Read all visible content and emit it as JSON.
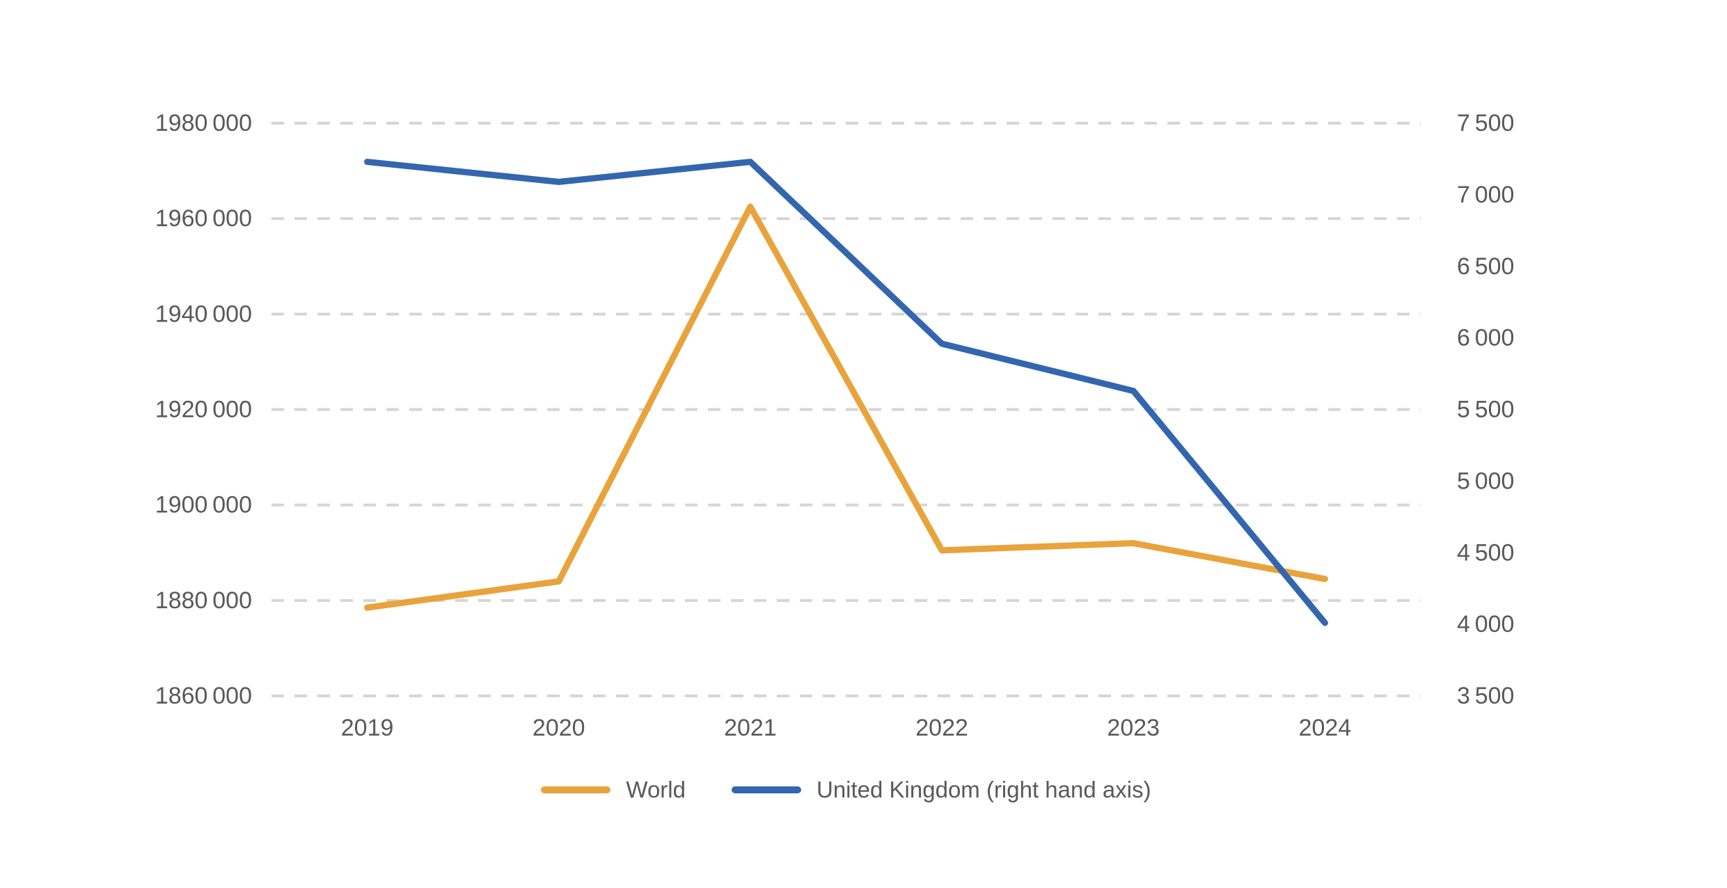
{
  "chart_data": {
    "type": "line",
    "title": "",
    "xlabel": "",
    "ylabel": "",
    "categories": [
      "2019",
      "2020",
      "2021",
      "2022",
      "2023",
      "2024"
    ],
    "series": [
      {
        "name": "World",
        "axis": "left",
        "color": "#E9A33C",
        "values": [
          1878500,
          1884000,
          1962500,
          1890500,
          1892000,
          1884500
        ]
      },
      {
        "name": "United Kingdom (right hand axis)",
        "axis": "right",
        "color": "#3366AE",
        "values": [
          7230,
          7090,
          7230,
          5960,
          5630,
          4010
        ]
      }
    ],
    "left_axis": {
      "min": 1860000,
      "max": 1980000,
      "step": 20000,
      "tick_labels": [
        "1980 000",
        "1960 000",
        "1940 000",
        "1920 000",
        "1900 000",
        "1880 000",
        "1860 000"
      ]
    },
    "right_axis": {
      "min": 3500,
      "max": 7500,
      "step": 500,
      "tick_labels": [
        "7 500",
        "7 000",
        "6 500",
        "6 000",
        "5 500",
        "5 000",
        "4 500",
        "4 000",
        "3 500"
      ]
    },
    "x_tick_labels": [
      "2019",
      "2020",
      "2021",
      "2022",
      "2023",
      "2024"
    ],
    "grid": "horizontal-dashed",
    "legend_position": "bottom-center",
    "colors": {
      "tick_text": "#595959",
      "gridline": "#D5D5D5",
      "background": "#FFFFFF"
    }
  },
  "legend": {
    "items": [
      {
        "label": "World",
        "color": "#E9A33C"
      },
      {
        "label": "United Kingdom (right hand axis)",
        "color": "#3366AE"
      }
    ]
  }
}
